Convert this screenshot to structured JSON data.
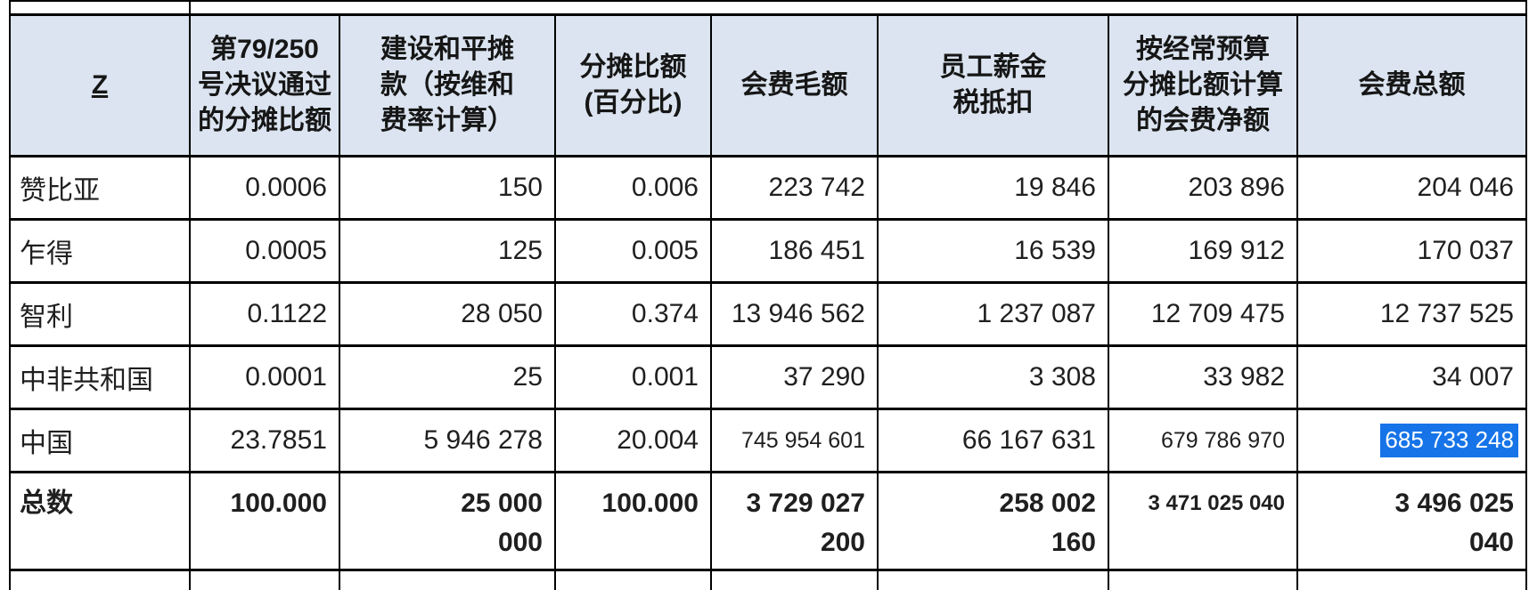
{
  "colors": {
    "header_background": "#dbe4f0",
    "border": "#000000",
    "selection_background": "#1674e8",
    "selection_text": "#ffffff"
  },
  "table": {
    "columns": [
      "Z",
      "第79/250\n号决议通过\n的分摊比额",
      "建设和平摊\n款（按维和\n费率计算）",
      "分摊比额\n(百分比)",
      "会费毛额",
      "员工薪金\n税抵扣",
      "按经常预算\n分摊比额计算\n的会费净额",
      "会费总额"
    ],
    "rows": [
      [
        "赞比亚",
        "0.0006",
        "150",
        "0.006",
        "223 742",
        "19 846",
        "203 896",
        "204 046"
      ],
      [
        "乍得",
        "0.0005",
        "125",
        "0.005",
        "186 451",
        "16 539",
        "169 912",
        "170 037"
      ],
      [
        "智利",
        "0.1122",
        "28 050",
        "0.374",
        "13 946 562",
        "1 237 087",
        "12 709 475",
        "12 737 525"
      ],
      [
        "中非共和国",
        "0.0001",
        "25",
        "0.001",
        "37 290",
        "3 308",
        "33 982",
        "34 007"
      ],
      [
        "中国",
        "23.7851",
        "5 946 278",
        "20.004",
        "745 954 601",
        "66 167 631",
        "679 786 970",
        "685 733 248"
      ],
      [
        "总数",
        "100.000",
        "25 000\n000",
        "100.000",
        "3 729 027\n200",
        "258 002\n160",
        "3 471 025 040",
        "3 496 025\n040"
      ]
    ],
    "selection": {
      "row_label": "中国",
      "column_label": "会费总额",
      "value": "685 733 248"
    }
  }
}
